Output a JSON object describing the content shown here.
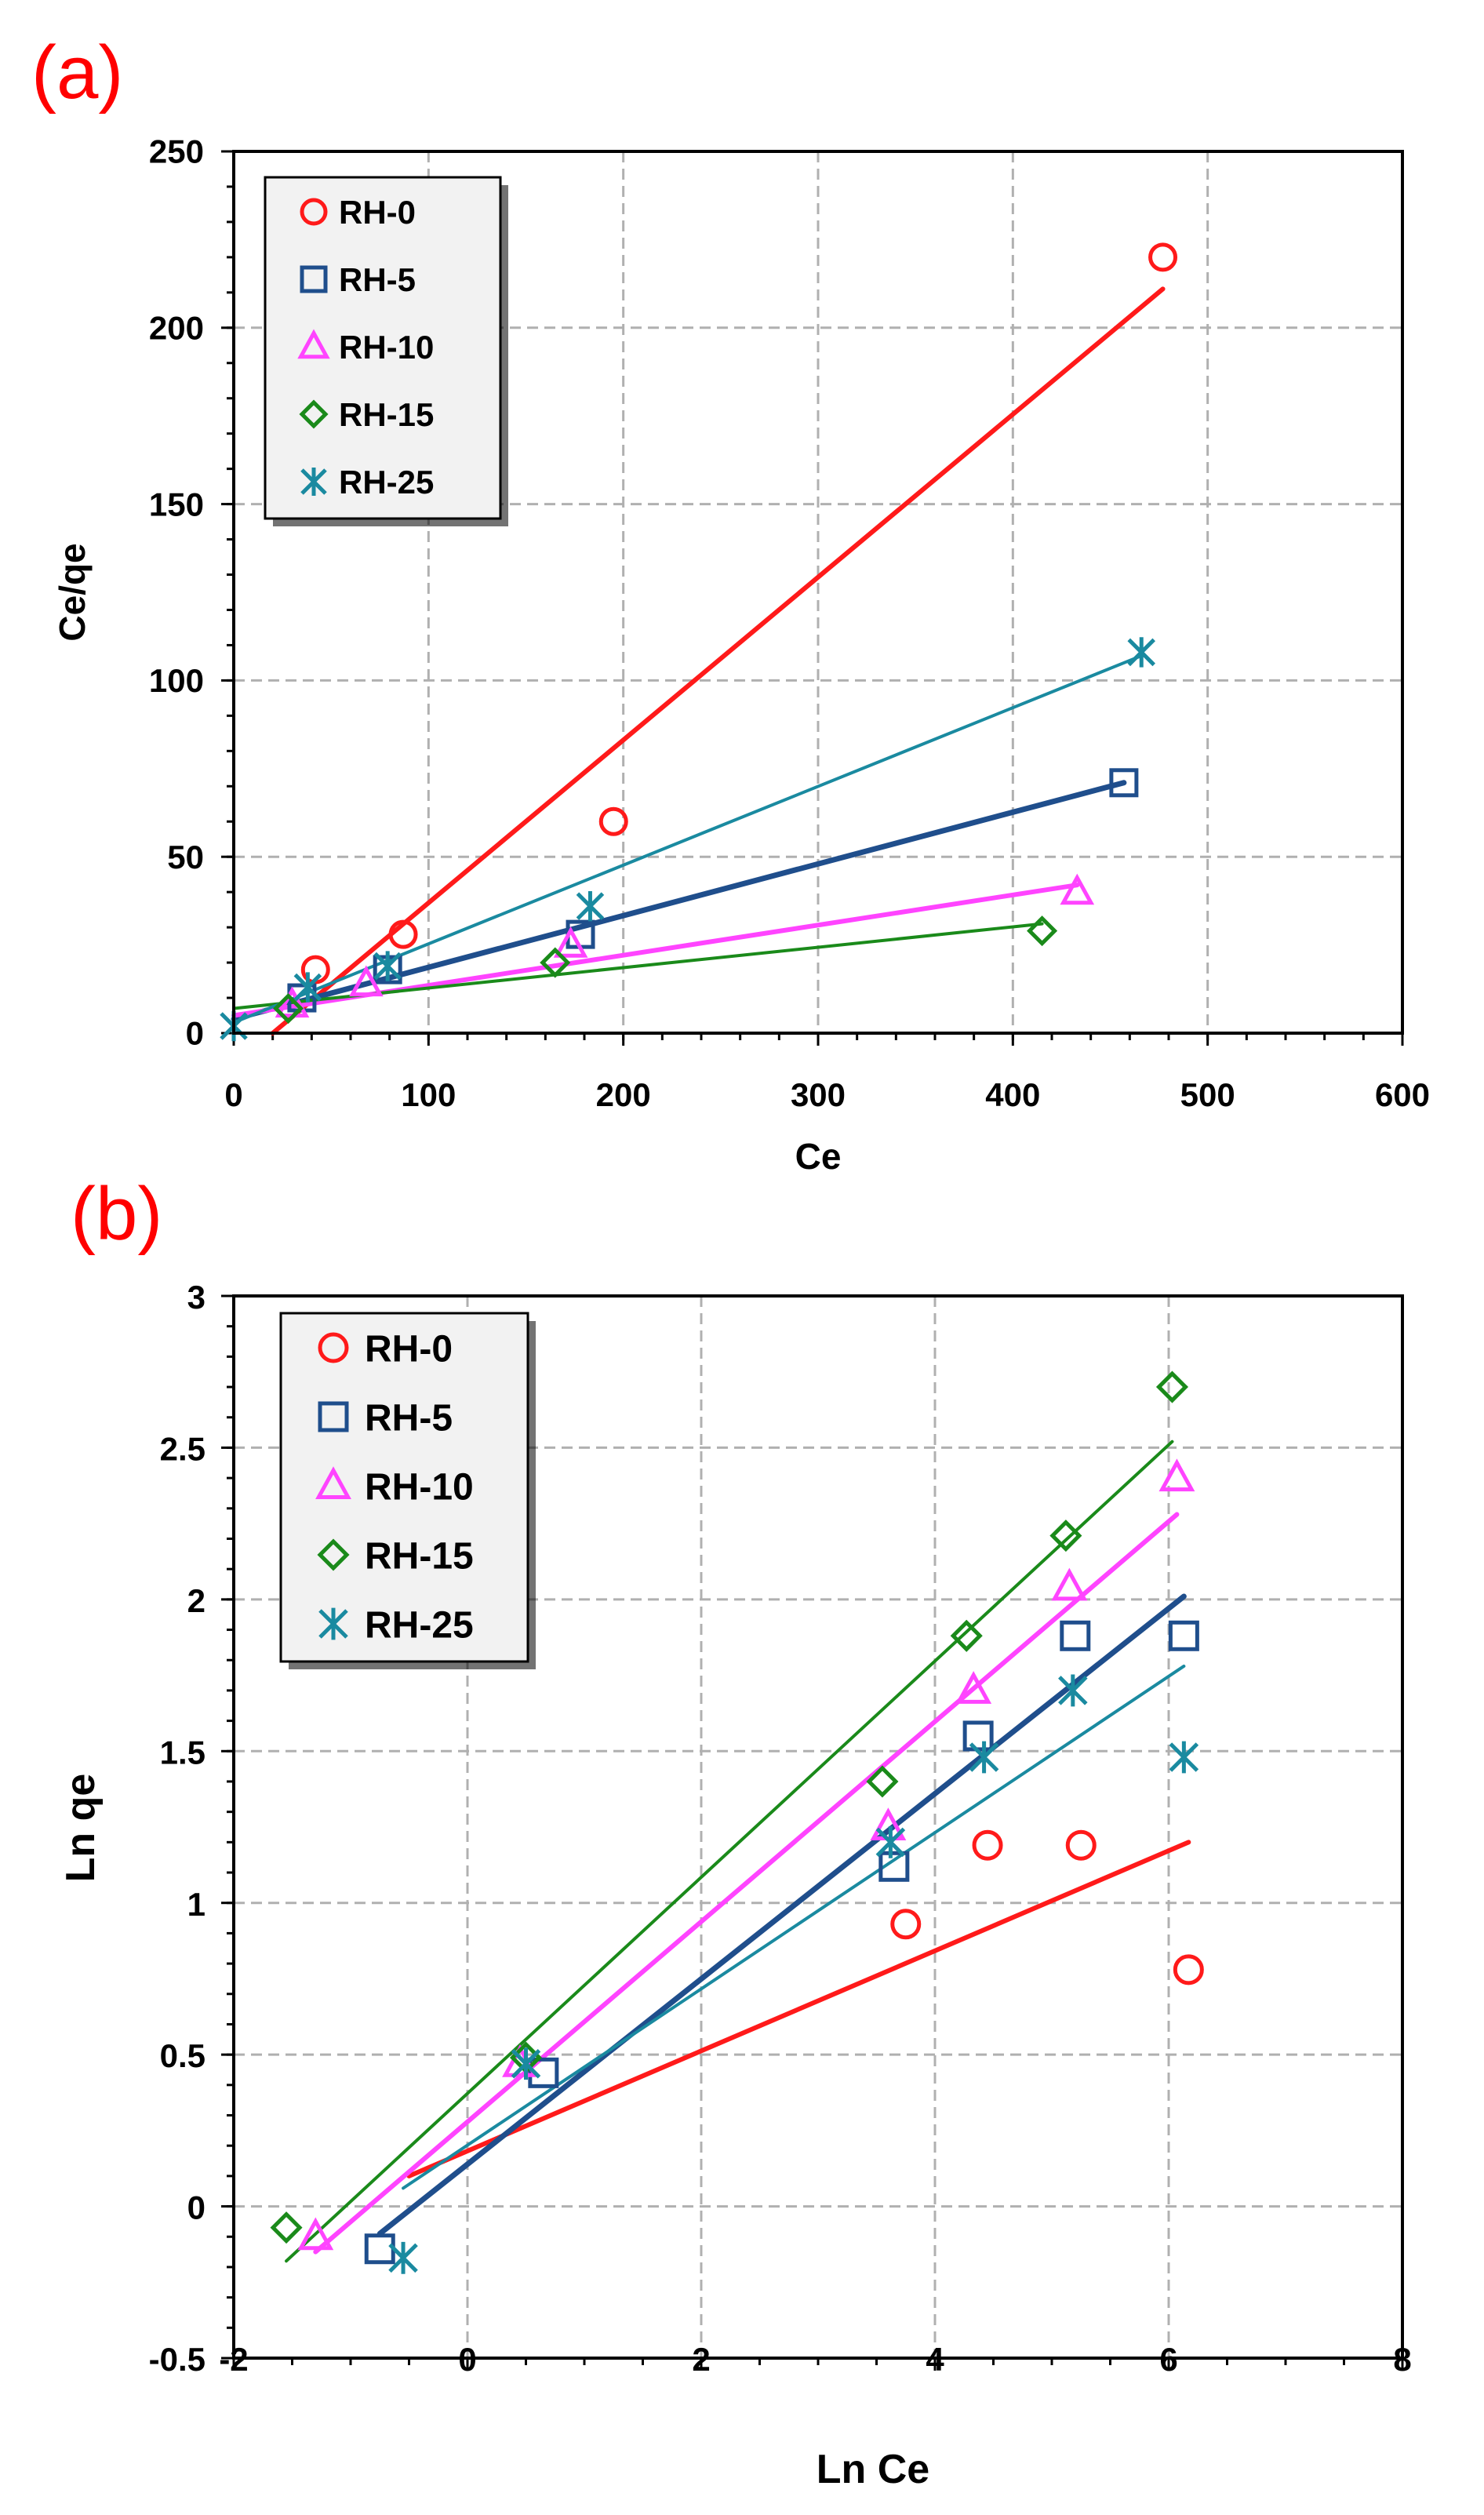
{
  "colors": {
    "RH-0": "#ff1a1a",
    "RH-5": "#1f4e8c",
    "RH-10": "#ff44ff",
    "RH-15": "#1a8a1a",
    "RH-25": "#1a8aa0"
  },
  "chart_data": [
    {
      "panel_label": "(a)",
      "type": "scatter",
      "xlabel": "Ce",
      "ylabel": "Ce/qe",
      "xlim": [
        0,
        600
      ],
      "ylim": [
        0,
        250
      ],
      "xticks": [
        0,
        100,
        200,
        300,
        400,
        500,
        600
      ],
      "yticks": [
        0,
        50,
        100,
        150,
        200,
        250
      ],
      "grid": true,
      "legend_position": "top-left",
      "series": [
        {
          "name": "RH-0",
          "marker": "circle",
          "points": [
            [
              42,
              18
            ],
            [
              87,
              28
            ],
            [
              195,
              60
            ],
            [
              477,
              220
            ]
          ],
          "fit": [
            [
              20,
              0
            ],
            [
              477,
              211
            ]
          ]
        },
        {
          "name": "RH-5",
          "marker": "square",
          "points": [
            [
              35,
              10
            ],
            [
              79,
              18
            ],
            [
              178,
              28
            ],
            [
              457,
              71
            ]
          ],
          "fit": [
            [
              0,
              4
            ],
            [
              457,
              71
            ]
          ]
        },
        {
          "name": "RH-10",
          "marker": "triangle",
          "points": [
            [
              30,
              8
            ],
            [
              68,
              14
            ],
            [
              173,
              25
            ],
            [
              433,
              40
            ]
          ],
          "fit": [
            [
              0,
              5
            ],
            [
              433,
              42
            ]
          ]
        },
        {
          "name": "RH-15",
          "marker": "diamond",
          "points": [
            [
              28,
              7
            ],
            [
              165,
              20
            ],
            [
              415,
              29
            ]
          ],
          "fit": [
            [
              0,
              7
            ],
            [
              415,
              31
            ]
          ]
        },
        {
          "name": "RH-25",
          "marker": "asterisk",
          "points": [
            [
              0,
              2
            ],
            [
              38,
              13
            ],
            [
              79,
              19
            ],
            [
              183,
              36
            ],
            [
              466,
              108
            ]
          ],
          "fit": [
            [
              0,
              3
            ],
            [
              466,
              107
            ]
          ]
        }
      ]
    },
    {
      "panel_label": "(b)",
      "type": "scatter",
      "xlabel": "Ln Ce",
      "ylabel": "Ln qe",
      "xlim": [
        -2,
        8
      ],
      "ylim": [
        -0.5,
        3
      ],
      "xticks": [
        -2,
        0,
        2,
        4,
        6,
        8
      ],
      "yticks": [
        -0.5,
        0,
        0.5,
        1,
        1.5,
        2,
        2.5,
        3
      ],
      "grid": true,
      "legend_position": "top-left",
      "series": [
        {
          "name": "RH-0",
          "marker": "circle",
          "points": [
            [
              3.75,
              0.93
            ],
            [
              4.45,
              1.19
            ],
            [
              5.25,
              1.19
            ],
            [
              6.17,
              0.78
            ]
          ],
          "fit": [
            [
              -0.5,
              0.1
            ],
            [
              6.17,
              1.2
            ]
          ]
        },
        {
          "name": "RH-5",
          "marker": "square",
          "points": [
            [
              -0.75,
              -0.14
            ],
            [
              0.65,
              0.44
            ],
            [
              3.65,
              1.12
            ],
            [
              4.37,
              1.55
            ],
            [
              5.2,
              1.88
            ],
            [
              6.13,
              1.88
            ]
          ],
          "fit": [
            [
              -0.75,
              -0.09
            ],
            [
              6.13,
              2.01
            ]
          ]
        },
        {
          "name": "RH-10",
          "marker": "triangle",
          "points": [
            [
              -1.3,
              -0.1
            ],
            [
              0.45,
              0.47
            ],
            [
              3.6,
              1.25
            ],
            [
              4.33,
              1.7
            ],
            [
              5.15,
              2.04
            ],
            [
              6.07,
              2.4
            ]
          ],
          "fit": [
            [
              -1.3,
              -0.15
            ],
            [
              6.07,
              2.28
            ]
          ]
        },
        {
          "name": "RH-15",
          "marker": "diamond",
          "points": [
            [
              -1.55,
              -0.07
            ],
            [
              0.5,
              0.49
            ],
            [
              3.55,
              1.4
            ],
            [
              4.27,
              1.88
            ],
            [
              5.12,
              2.21
            ],
            [
              6.03,
              2.7
            ]
          ],
          "fit": [
            [
              -1.55,
              -0.18
            ],
            [
              6.03,
              2.52
            ]
          ]
        },
        {
          "name": "RH-25",
          "marker": "asterisk",
          "points": [
            [
              -0.55,
              -0.17
            ],
            [
              0.5,
              0.47
            ],
            [
              3.62,
              1.2
            ],
            [
              4.42,
              1.48
            ],
            [
              5.18,
              1.7
            ],
            [
              6.13,
              1.48
            ]
          ],
          "fit": [
            [
              -0.55,
              0.06
            ],
            [
              6.13,
              1.78
            ]
          ]
        }
      ]
    }
  ]
}
